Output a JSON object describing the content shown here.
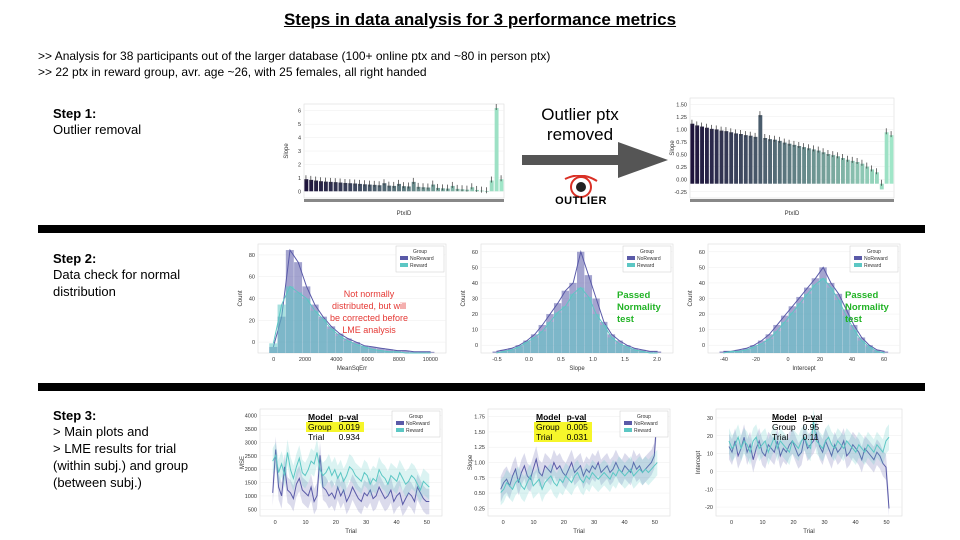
{
  "title": "Steps in data analysis for 3 performance metrics",
  "intro": [
    ">> Analysis for 38 participants out of the larger database (100+ online ptx and ~80 in person ptx)",
    ">> 22 ptx in reward group, avr. age ~26, with 25 females, all right handed"
  ],
  "step1": {
    "heading": "Step 1:",
    "text": "Outlier removal",
    "arrow_label": "Outlier ptx removed",
    "logo_text": "OUTLIER"
  },
  "step2": {
    "heading": "Step 2:",
    "text": "Data check for normal distribution",
    "notes": [
      "Not normally distributed, but will be corrected before LME analysis",
      "Passed Normality test",
      "Passed Normality test"
    ]
  },
  "step3": {
    "heading": "Step 3:",
    "lines": [
      "> Main plots and",
      "> LME results for trial",
      "(within subj.) and group",
      "(between subj.)"
    ],
    "tables": [
      {
        "col1": "Model",
        "col2": "p-val",
        "rows": [
          {
            "name": "Group",
            "pval": "0.019",
            "highlight": true
          },
          {
            "name": "Trial",
            "pval": "0.934",
            "highlight": false
          }
        ]
      },
      {
        "col1": "Model",
        "col2": "p-val",
        "rows": [
          {
            "name": "Group",
            "pval": "0.005",
            "highlight": true
          },
          {
            "name": "Trial",
            "pval": "0.031",
            "highlight": true
          }
        ]
      },
      {
        "col1": "Model",
        "col2": "p-val",
        "rows": [
          {
            "name": "Group",
            "pval": "0.95",
            "highlight": false
          },
          {
            "name": "Trial",
            "pval": "0.11",
            "highlight": false
          }
        ]
      }
    ]
  },
  "chart_data": [
    {
      "type": "bar",
      "panel": "outlier-before",
      "xlabel": "PtxID",
      "ylabel": "Slope",
      "ylim": [
        -0.5,
        6.5
      ],
      "yticks": [
        "0",
        "1",
        "2",
        "3",
        "4",
        "5",
        "6"
      ],
      "values": [
        0.9,
        0.85,
        0.8,
        0.75,
        0.72,
        0.7,
        0.68,
        0.65,
        0.62,
        0.6,
        0.58,
        0.55,
        0.52,
        0.5,
        0.48,
        0.45,
        0.6,
        0.42,
        0.4,
        0.55,
        0.38,
        0.36,
        0.7,
        0.33,
        0.3,
        0.28,
        0.5,
        0.25,
        0.22,
        0.2,
        0.4,
        0.18,
        0.15,
        0.12,
        0.3,
        0.1,
        0.05,
        -0.05,
        0.8,
        6.2,
        0.9
      ]
    },
    {
      "type": "bar",
      "panel": "outlier-after",
      "xlabel": "PtxID",
      "ylabel": "Slope",
      "ylim": [
        -0.25,
        1.5
      ],
      "yticks": [
        "-0.25",
        "0.00",
        "0.25",
        "0.50",
        "0.75",
        "1.00",
        "1.25",
        "1.50"
      ],
      "values": [
        1.05,
        1.02,
        1.0,
        0.98,
        0.96,
        0.95,
        0.93,
        0.92,
        0.9,
        0.88,
        0.87,
        0.85,
        0.84,
        0.82,
        1.2,
        0.8,
        0.78,
        0.77,
        0.75,
        0.72,
        0.7,
        0.68,
        0.66,
        0.64,
        0.62,
        0.6,
        0.58,
        0.55,
        0.52,
        0.5,
        0.48,
        0.45,
        0.42,
        0.4,
        0.38,
        0.35,
        0.3,
        0.25,
        0.2,
        -0.1,
        0.9,
        0.85
      ]
    },
    {
      "type": "histogram",
      "panel": "mse",
      "xlabel": "MeanSqErr",
      "ylabel": "Count",
      "xlim": [
        0,
        10000
      ],
      "ylim": [
        0,
        90
      ],
      "xticks": [
        "0",
        "2000",
        "4000",
        "6000",
        "8000",
        "10000"
      ],
      "yticks": [
        "0",
        "20",
        "40",
        "60",
        "80"
      ],
      "legend": {
        "title": "Group",
        "entries": [
          "NoReward",
          "Reward"
        ]
      },
      "series": [
        {
          "name": "NoReward",
          "values": [
            5,
            30,
            85,
            75,
            55,
            40,
            30,
            22,
            16,
            12,
            9,
            6,
            5,
            4,
            3,
            2,
            2,
            1,
            1,
            1
          ]
        },
        {
          "name": "Reward",
          "values": [
            8,
            40,
            55,
            50,
            45,
            35,
            28,
            20,
            14,
            10,
            7,
            5,
            3,
            2,
            1,
            1,
            0,
            0,
            0,
            0
          ]
        }
      ]
    },
    {
      "type": "histogram",
      "panel": "slope",
      "xlabel": "Slope",
      "ylabel": "Count",
      "xlim": [
        -0.5,
        2.0
      ],
      "ylim": [
        0,
        70
      ],
      "xticks": [
        "-0.5",
        "0.0",
        "0.5",
        "1.0",
        "1.5",
        "2.0"
      ],
      "yticks": [
        "0",
        "10",
        "20",
        "30",
        "40",
        "50",
        "60"
      ],
      "legend": {
        "title": "Group",
        "entries": [
          "NoReward",
          "Reward"
        ]
      },
      "series": [
        {
          "name": "NoReward",
          "values": [
            1,
            2,
            3,
            5,
            8,
            12,
            18,
            25,
            32,
            40,
            45,
            65,
            50,
            35,
            20,
            12,
            8,
            5,
            3,
            2,
            1,
            1
          ]
        },
        {
          "name": "Reward",
          "values": [
            0,
            1,
            2,
            4,
            7,
            10,
            14,
            20,
            26,
            30,
            38,
            42,
            36,
            25,
            18,
            10,
            6,
            4,
            2,
            1,
            0,
            0
          ]
        }
      ]
    },
    {
      "type": "histogram",
      "panel": "intercept",
      "xlabel": "Intercept",
      "ylabel": "Count",
      "xlim": [
        -45,
        65
      ],
      "ylim": [
        0,
        70
      ],
      "xticks": [
        "-40",
        "-20",
        "0",
        "20",
        "40",
        "60"
      ],
      "yticks": [
        "0",
        "10",
        "20",
        "30",
        "40",
        "50",
        "60"
      ],
      "legend": {
        "title": "Group",
        "entries": [
          "NoReward",
          "Reward"
        ]
      },
      "series": [
        {
          "name": "NoReward",
          "values": [
            1,
            1,
            2,
            3,
            5,
            8,
            12,
            18,
            24,
            30,
            36,
            42,
            48,
            55,
            45,
            38,
            28,
            18,
            10,
            5,
            2,
            1
          ]
        },
        {
          "name": "Reward",
          "values": [
            0,
            1,
            1,
            2,
            4,
            6,
            9,
            14,
            20,
            26,
            32,
            38,
            44,
            48,
            42,
            34,
            24,
            15,
            8,
            4,
            1,
            0
          ]
        }
      ]
    },
    {
      "type": "line",
      "panel": "mse-trial",
      "xlabel": "Trial",
      "ylabel": "MSE",
      "xlim": [
        -2,
        55
      ],
      "ylim": [
        500,
        4200
      ],
      "xticks": [
        "0",
        "10",
        "20",
        "30",
        "40",
        "50"
      ],
      "yticks": [
        "500",
        "1000",
        "1500",
        "2000",
        "2500",
        "3000",
        "3500",
        "4000"
      ],
      "legend": {
        "title": "Group",
        "entries": [
          "NoReward",
          "Reward"
        ]
      },
      "series": [
        {
          "name": "NoReward",
          "values": [
            1300,
            2800,
            1500,
            1200,
            2200,
            1400,
            1300,
            1100,
            1600,
            1800,
            1400,
            1300,
            1200,
            1500,
            1000,
            1200,
            2600,
            1500,
            1400,
            1200,
            1300,
            1100,
            1500,
            1200,
            1400,
            1000,
            1200,
            1500,
            1300,
            1100,
            1000,
            1300,
            1200,
            1400,
            1100,
            1200,
            1500,
            1300,
            1100,
            1200,
            1400,
            1000,
            1200,
            1300,
            900,
            1100,
            1300,
            1200,
            1000,
            1500,
            1300,
            1100,
            1000,
            1000
          ]
        },
        {
          "name": "Reward",
          "values": [
            2400,
            2600,
            2000,
            2300,
            1900,
            2700,
            2100,
            1800,
            2200,
            2500,
            2000,
            1900,
            2100,
            2400,
            2300,
            2700,
            2100,
            1900,
            2000,
            2200,
            1900,
            2100,
            1800,
            2000,
            1700,
            1900,
            2200,
            2100,
            1900,
            1800,
            1700,
            2000,
            1900,
            1600,
            1800,
            1700,
            2100,
            1900,
            1800,
            1600,
            1900,
            1800,
            1700,
            2000,
            1800,
            1600,
            1700,
            1900,
            1800,
            1600,
            1400,
            1700,
            1600,
            1500
          ]
        }
      ]
    },
    {
      "type": "line",
      "panel": "slope-trial",
      "xlabel": "Trial",
      "ylabel": "Slope",
      "xlim": [
        -2,
        55
      ],
      "ylim": [
        0.2,
        1.8
      ],
      "xticks": [
        "0",
        "10",
        "20",
        "30",
        "40",
        "50"
      ],
      "yticks": [
        "0.25",
        "0.50",
        "0.75",
        "1.00",
        "1.25",
        "1.50",
        "1.75"
      ],
      "legend": {
        "title": "Group",
        "entries": [
          "NoReward",
          "Reward"
        ]
      },
      "series": [
        {
          "name": "NoReward",
          "values": [
            0.6,
            0.7,
            0.75,
            0.65,
            0.8,
            0.9,
            0.7,
            0.85,
            0.95,
            0.8,
            0.75,
            0.9,
            1.05,
            0.85,
            0.8,
            0.95,
            0.9,
            0.85,
            1.0,
            0.9,
            0.95,
            0.85,
            0.8,
            0.9,
            1.0,
            0.85,
            0.9,
            0.95,
            0.8,
            0.9,
            0.85,
            0.95,
            0.9,
            1.0,
            0.85,
            0.9,
            0.95,
            0.85,
            0.9,
            1.0,
            0.9,
            0.85,
            0.95,
            0.9,
            0.85,
            1.0,
            0.9,
            0.95,
            0.85,
            0.9,
            0.95,
            1.0,
            1.1,
            1.75
          ]
        },
        {
          "name": "Reward",
          "values": [
            0.55,
            0.6,
            0.7,
            0.65,
            0.6,
            0.7,
            0.75,
            0.65,
            0.6,
            0.7,
            0.8,
            0.65,
            0.7,
            0.75,
            0.6,
            0.7,
            0.75,
            0.8,
            0.7,
            0.65,
            0.75,
            0.7,
            0.8,
            0.75,
            0.7,
            0.8,
            0.85,
            0.75,
            0.7,
            0.8,
            0.75,
            0.85,
            0.8,
            0.75,
            0.8,
            0.85,
            0.8,
            0.75,
            0.85,
            0.8,
            0.9,
            0.85,
            0.8,
            0.85,
            0.9,
            0.8,
            0.85,
            0.9,
            0.85,
            0.9,
            0.85,
            0.9,
            0.95,
            1.0
          ]
        }
      ]
    },
    {
      "type": "line",
      "panel": "intercept-trial",
      "xlabel": "Trial",
      "ylabel": "Intercept",
      "xlim": [
        -2,
        55
      ],
      "ylim": [
        -22,
        35
      ],
      "xticks": [
        "0",
        "10",
        "20",
        "30",
        "40",
        "50"
      ],
      "yticks": [
        "-20",
        "-10",
        "0",
        "10",
        "20",
        "30"
      ],
      "legend": {
        "title": "",
        "entries": []
      },
      "series": [
        {
          "name": "",
          "values": [
            15,
            12,
            18,
            10,
            14,
            20,
            12,
            16,
            8,
            14,
            18,
            12,
            10,
            16,
            14,
            12,
            18,
            10,
            14,
            12,
            16,
            18,
            14,
            10,
            12,
            20,
            14,
            16,
            18,
            22,
            15,
            12,
            18,
            14,
            10,
            16,
            12,
            14,
            18,
            10,
            12,
            16,
            14,
            12,
            8,
            14,
            12,
            10,
            8,
            12,
            10,
            6,
            4,
            -18
          ]
        },
        {
          "name": "",
          "values": [
            18,
            14,
            16,
            20,
            14,
            18,
            16,
            12,
            18,
            20,
            14,
            16,
            18,
            12,
            16,
            20,
            14,
            18,
            16,
            14,
            12,
            18,
            16,
            14,
            18,
            20,
            16,
            14,
            28,
            18,
            16,
            14,
            18,
            20,
            16,
            14,
            18,
            16,
            14,
            18,
            16,
            14,
            12,
            16,
            14,
            12,
            16,
            14,
            12,
            16,
            14,
            12,
            18,
            20
          ]
        }
      ]
    }
  ]
}
